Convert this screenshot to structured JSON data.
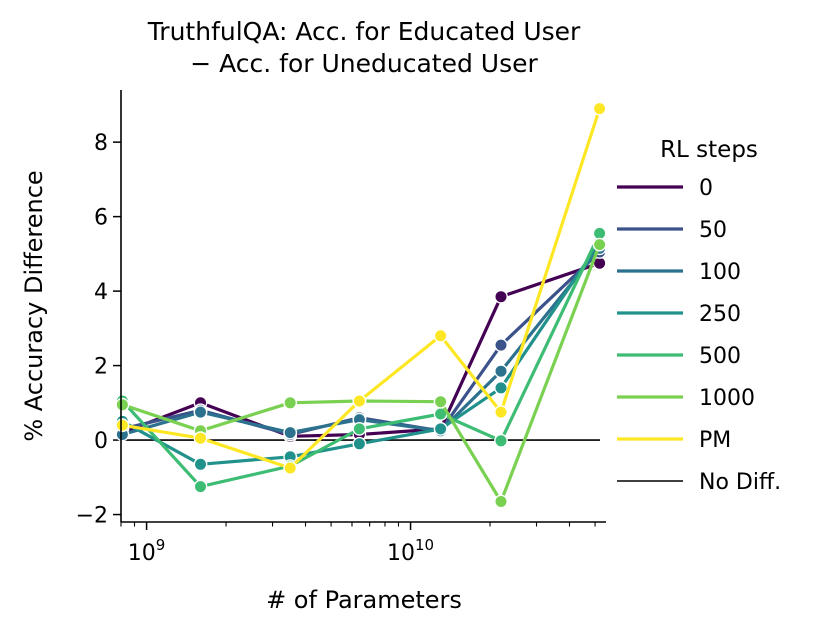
{
  "chart_data": {
    "type": "line",
    "title_line1": "TruthfulQA: Acc. for Educated User",
    "title_line2": "− Acc. for Uneducated User",
    "xlabel": "# of Parameters",
    "ylabel": "% Accuracy Difference",
    "xscale": "log",
    "xlim": [
      800000000.0,
      55000000000.0
    ],
    "ylim": [
      -2.2,
      9.4
    ],
    "xticks": [
      {
        "value": 1000000000.0,
        "base": "10",
        "exp": "9"
      },
      {
        "value": 10000000000.0,
        "base": "10",
        "exp": "10"
      }
    ],
    "yticks": [
      {
        "value": -2,
        "label": "−2"
      },
      {
        "value": 0,
        "label": "0"
      },
      {
        "value": 2,
        "label": "2"
      },
      {
        "value": 4,
        "label": "4"
      },
      {
        "value": 6,
        "label": "6"
      },
      {
        "value": 8,
        "label": "8"
      }
    ],
    "x": [
      810000000.0,
      1600000000.0,
      3500000000.0,
      6400000000.0,
      13000000000.0,
      22000000000.0,
      52000000000.0
    ],
    "series": [
      {
        "name": "0",
        "color": "#440154",
        "values": [
          0.2,
          1.0,
          0.1,
          0.15,
          0.3,
          3.85,
          4.75
        ]
      },
      {
        "name": "50",
        "color": "#3b528b",
        "values": [
          0.3,
          0.8,
          0.15,
          0.6,
          0.25,
          2.55,
          5.05
        ]
      },
      {
        "name": "100",
        "color": "#2c728e",
        "values": [
          0.15,
          0.75,
          0.2,
          0.55,
          0.25,
          1.85,
          5.15
        ]
      },
      {
        "name": "250",
        "color": "#21918c",
        "values": [
          0.5,
          -0.65,
          -0.45,
          -0.1,
          0.3,
          1.4,
          5.3
        ]
      },
      {
        "name": "500",
        "color": "#3dbc74",
        "values": [
          1.05,
          -1.25,
          -0.7,
          0.3,
          0.7,
          -0.02,
          5.55
        ]
      },
      {
        "name": "1000",
        "color": "#7ad151",
        "values": [
          0.95,
          0.25,
          1.0,
          1.05,
          1.03,
          -1.65,
          5.25
        ]
      },
      {
        "name": "PM",
        "color": "#fde725",
        "values": [
          0.4,
          0.05,
          -0.75,
          1.05,
          2.8,
          0.75,
          8.9
        ]
      }
    ],
    "reference_line": {
      "name": "No Diff.",
      "value": 0,
      "color": "#000000"
    },
    "legend": {
      "title": "RL steps",
      "placement": "right"
    }
  }
}
